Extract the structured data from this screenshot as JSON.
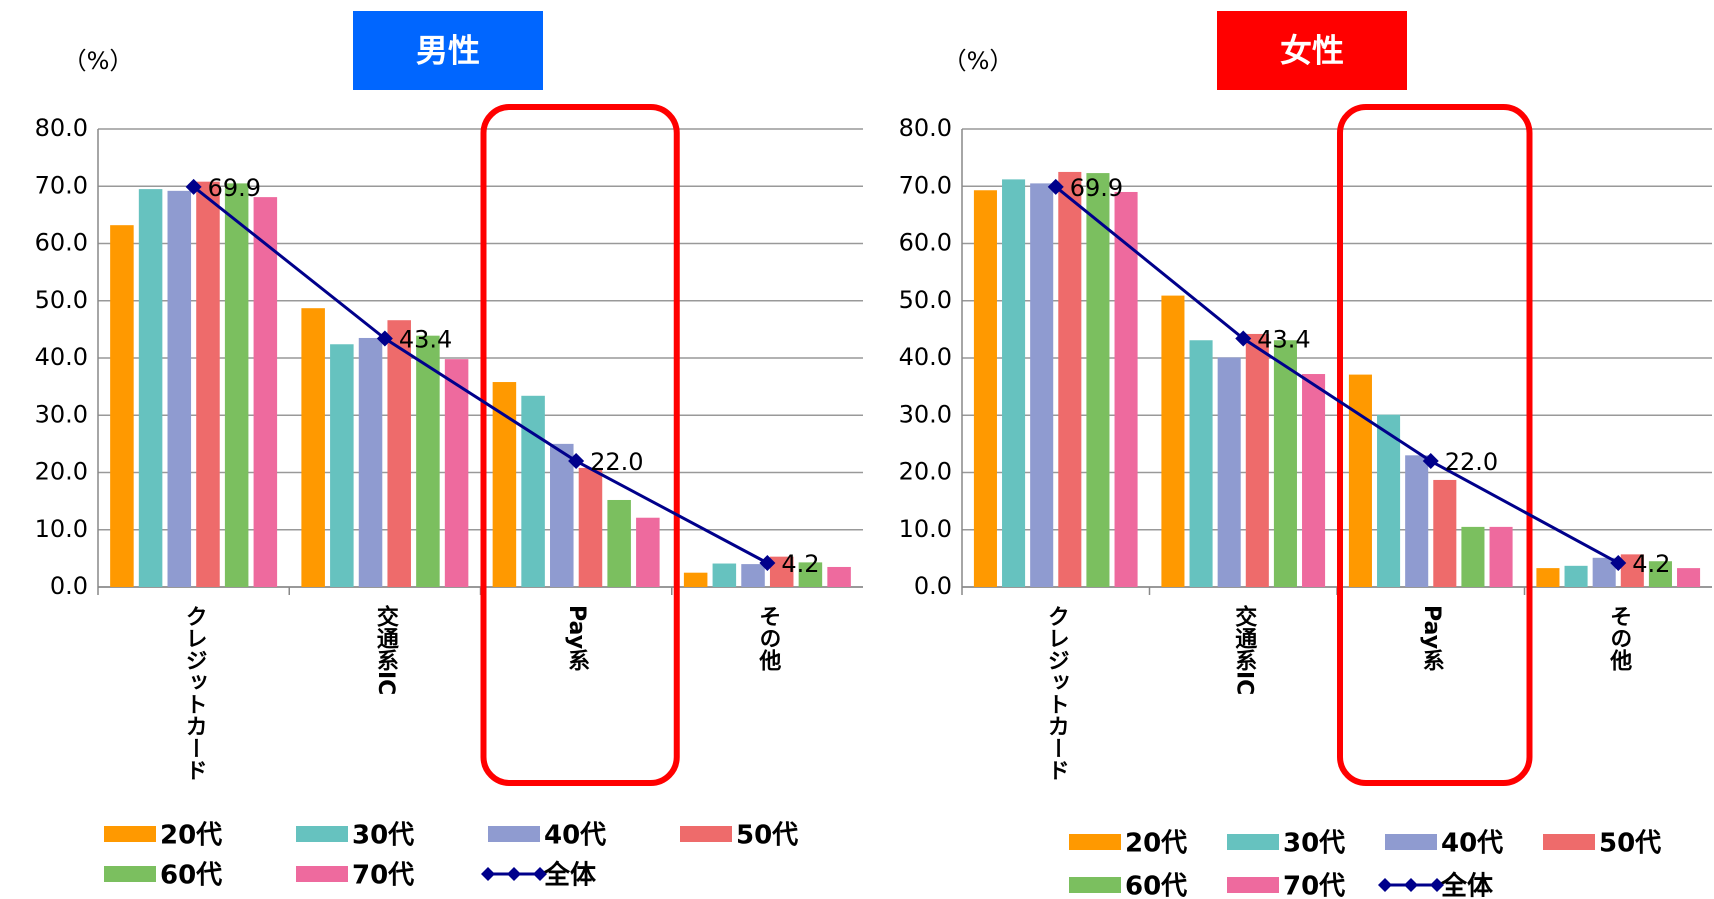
{
  "chart_data": [
    {
      "type": "bar",
      "title": "男性",
      "ylabel": "（%）",
      "categories": [
        "クレジットカード",
        "交通系IC",
        "Pay系",
        "その他"
      ],
      "ylim": [
        0,
        80
      ],
      "yticks": [
        {
          "value": 0,
          "label": "0.0"
        },
        {
          "value": 10,
          "label": "10.0"
        },
        {
          "value": 20,
          "label": "20.0"
        },
        {
          "value": 30,
          "label": "30.0"
        },
        {
          "value": 40,
          "label": "40.0"
        },
        {
          "value": 50,
          "label": "50.0"
        },
        {
          "value": 60,
          "label": "60.0"
        },
        {
          "value": 70,
          "label": "70.0"
        },
        {
          "value": 80,
          "label": "80.0"
        }
      ],
      "grid": true,
      "series": [
        {
          "name": "20代",
          "color": "#ff9900",
          "values": [
            63.2,
            48.7,
            35.8,
            2.5
          ]
        },
        {
          "name": "30代",
          "color": "#66c2bf",
          "values": [
            69.5,
            42.4,
            33.4,
            4.1
          ]
        },
        {
          "name": "40代",
          "color": "#8f9bd0",
          "values": [
            69.2,
            43.5,
            25.0,
            4.0
          ]
        },
        {
          "name": "50代",
          "color": "#ee6b6b",
          "values": [
            70.8,
            46.6,
            20.8,
            5.3
          ]
        },
        {
          "name": "60代",
          "color": "#7bbf5f",
          "values": [
            70.5,
            43.9,
            15.2,
            4.3
          ]
        },
        {
          "name": "70代",
          "color": "#ee6a9e",
          "values": [
            68.1,
            39.8,
            12.1,
            3.5
          ]
        },
        {
          "name": "全体",
          "type": "line",
          "color": "#00008b",
          "values": [
            69.9,
            43.4,
            22.0,
            4.2
          ],
          "value_labels": [
            "69.9",
            "43.4",
            "22.0",
            "4.2"
          ]
        }
      ]
    },
    {
      "type": "bar",
      "title": "女性",
      "ylabel": "（%）",
      "categories": [
        "クレジットカード",
        "交通系IC",
        "Pay系",
        "その他"
      ],
      "ylim": [
        0,
        80
      ],
      "yticks": [
        {
          "value": 0,
          "label": "0.0"
        },
        {
          "value": 10,
          "label": "10.0"
        },
        {
          "value": 20,
          "label": "20.0"
        },
        {
          "value": 30,
          "label": "30.0"
        },
        {
          "value": 40,
          "label": "40.0"
        },
        {
          "value": 50,
          "label": "50.0"
        },
        {
          "value": 60,
          "label": "60.0"
        },
        {
          "value": 70,
          "label": "70.0"
        },
        {
          "value": 80,
          "label": "80.0"
        }
      ],
      "grid": true,
      "series": [
        {
          "name": "20代",
          "color": "#ff9900",
          "values": [
            69.3,
            50.9,
            37.1,
            3.3
          ]
        },
        {
          "name": "30代",
          "color": "#66c2bf",
          "values": [
            71.2,
            43.1,
            30.1,
            3.7
          ]
        },
        {
          "name": "40代",
          "color": "#8f9bd0",
          "values": [
            70.5,
            40.1,
            23.0,
            5.1
          ]
        },
        {
          "name": "50代",
          "color": "#ee6b6b",
          "values": [
            72.5,
            44.2,
            18.7,
            5.7
          ]
        },
        {
          "name": "60代",
          "color": "#7bbf5f",
          "values": [
            72.3,
            43.1,
            10.5,
            4.5
          ]
        },
        {
          "name": "70代",
          "color": "#ee6a9e",
          "values": [
            69.0,
            37.2,
            10.5,
            3.3
          ]
        },
        {
          "name": "全体",
          "type": "line",
          "color": "#00008b",
          "values": [
            69.9,
            43.4,
            22.0,
            4.2
          ],
          "value_labels": [
            "69.9",
            "43.4",
            "22.0",
            "4.2"
          ]
        }
      ]
    }
  ]
}
